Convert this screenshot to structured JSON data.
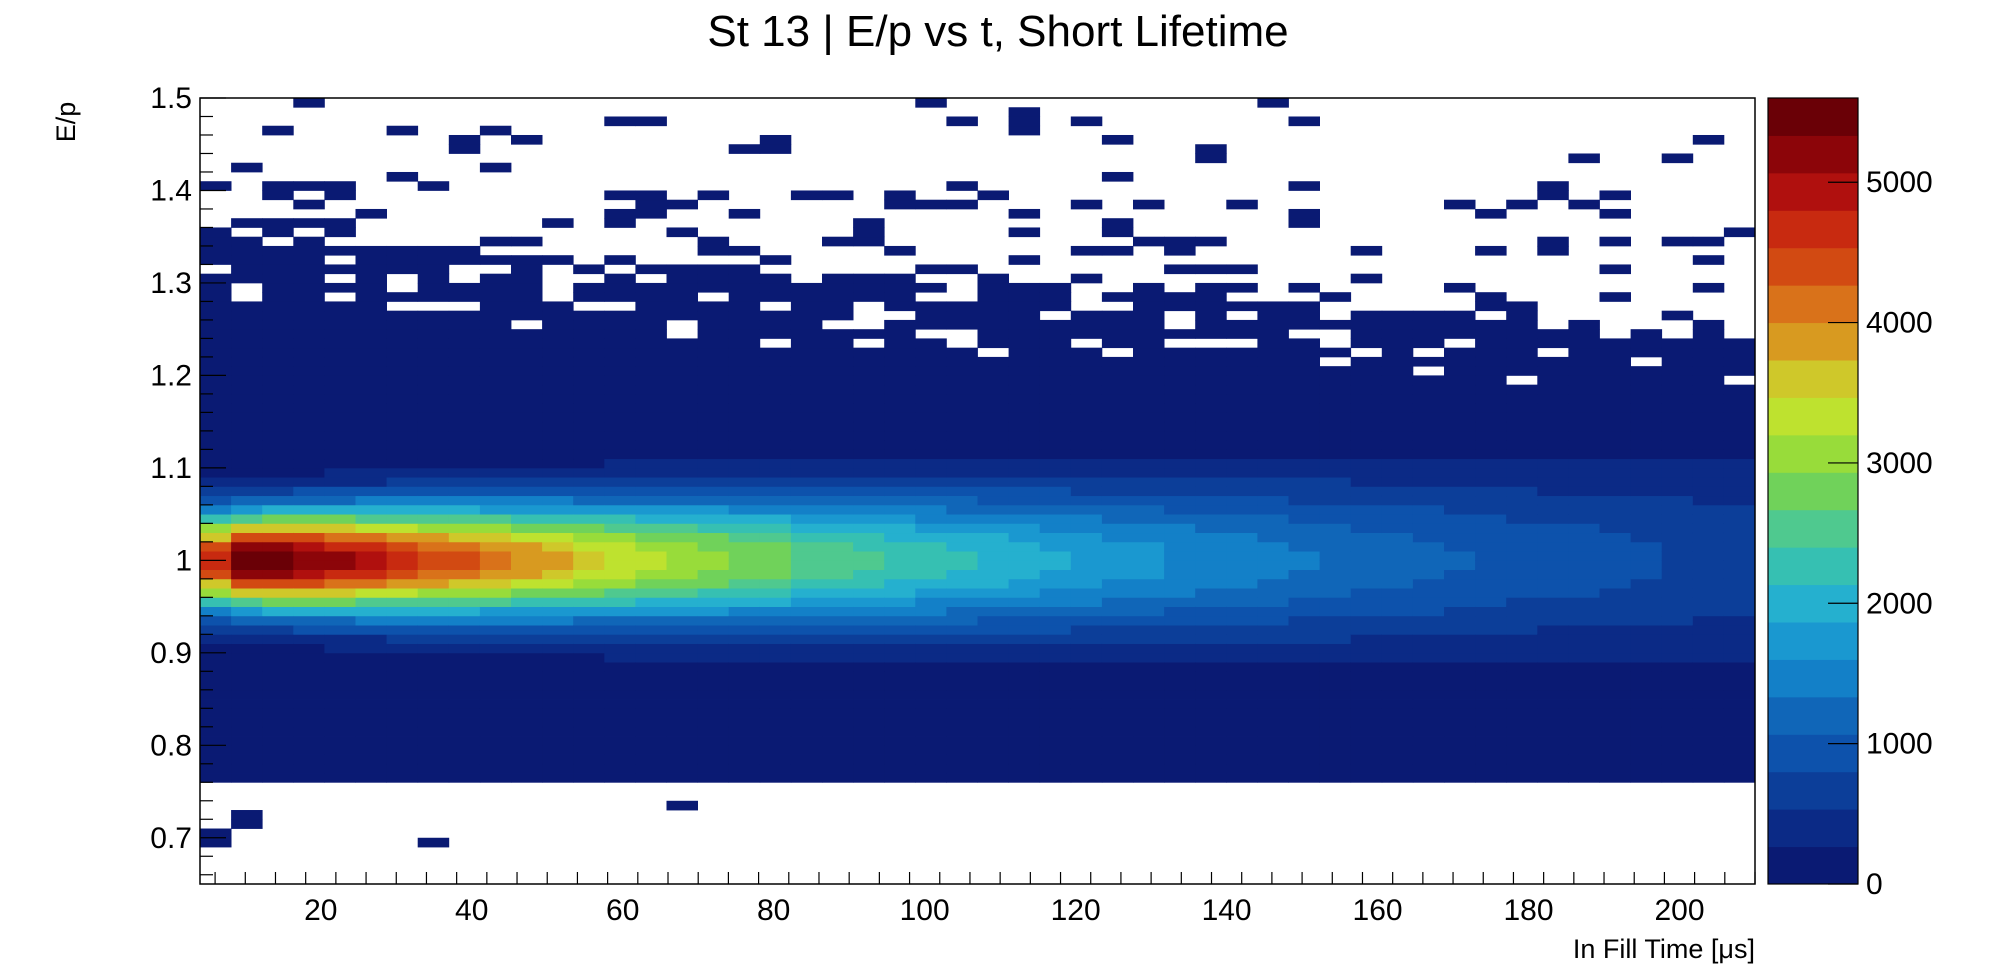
{
  "chart_data": {
    "type": "heatmap",
    "title": "St 13 | E/p vs t, Short Lifetime",
    "xlabel": "In Fill Time [μs]",
    "ylabel": "E/p",
    "xlim": [
      4,
      210
    ],
    "ylim": [
      0.65,
      1.5
    ],
    "x_ticks": [
      20,
      40,
      60,
      80,
      100,
      120,
      140,
      160,
      180,
      200
    ],
    "y_ticks": [
      0.7,
      0.8,
      0.9,
      1.0,
      1.1,
      1.2,
      1.3,
      1.4,
      1.5
    ],
    "x_tick_labels": [
      "20",
      "40",
      "60",
      "80",
      "100",
      "120",
      "140",
      "160",
      "180",
      "200"
    ],
    "y_tick_labels": [
      "0.7",
      "0.8",
      "0.9",
      "1",
      "1.1",
      "1.2",
      "1.3",
      "1.4",
      "1.5"
    ],
    "colorbar": {
      "zlim": [
        0,
        5600
      ],
      "ticks": [
        0,
        1000,
        2000,
        3000,
        4000,
        5000
      ],
      "tick_labels": [
        "0",
        "1000",
        "2000",
        "3000",
        "4000",
        "5000"
      ],
      "colors": [
        "#0a1a73",
        "#0b2a86",
        "#0c3e99",
        "#0d52ac",
        "#1066b8",
        "#1380c8",
        "#1a98d0",
        "#25b0cf",
        "#36c0b2",
        "#4fc98f",
        "#70d25a",
        "#98dc3a",
        "#bee22f",
        "#cfc82a",
        "#d89a20",
        "#d9721a",
        "#d24a12",
        "#c82a10",
        "#b0100e",
        "#8c0509",
        "#6a0006"
      ]
    },
    "peak": {
      "t": 16,
      "Ep": 1.0,
      "count": 5500
    },
    "core_decay_tau_us": 95,
    "core_width_Ep": [
      0.036,
      0.075
    ],
    "filled_band_Ep": [
      0.758,
      1.355
    ]
  }
}
